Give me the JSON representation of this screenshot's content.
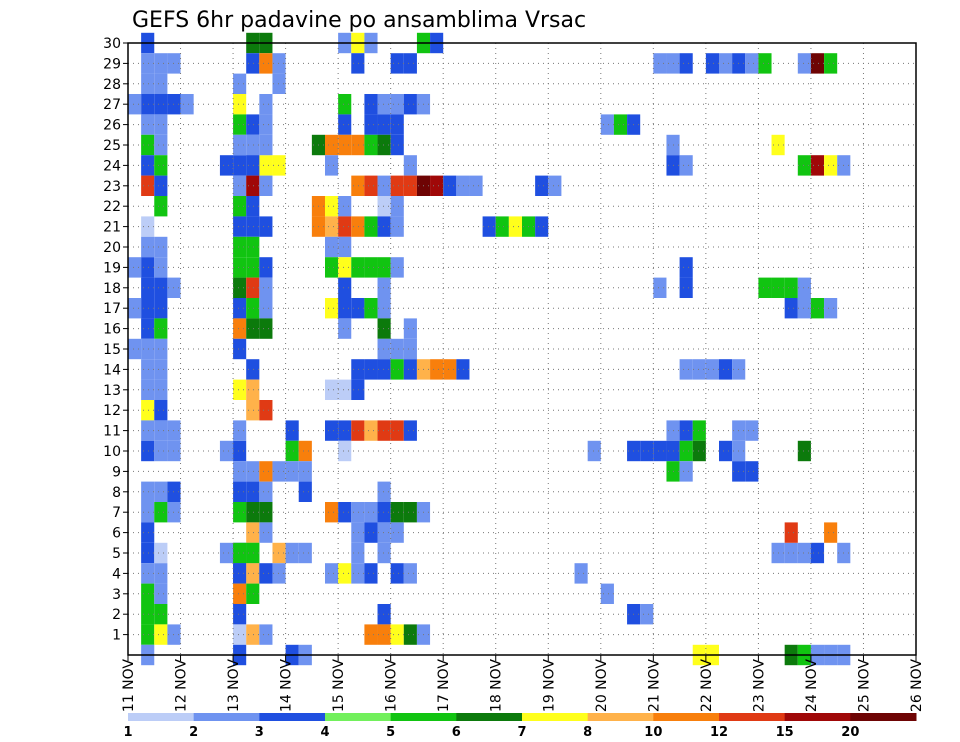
{
  "chart_data": {
    "type": "heatmap",
    "title": "GEFS 6hr padavine po ansamblima Vrsac",
    "xlabel": "",
    "ylabel": "",
    "x_tick_labels": [
      "11 NOV",
      "12 NOV",
      "13 NOV",
      "14 NOV",
      "15 NOV",
      "16 NOV",
      "17 NOV",
      "18 NOV",
      "19 NOV",
      "20 NOV",
      "21 NOV",
      "22 NOV",
      "23 NOV",
      "24 NOV",
      "25 NOV",
      "26 NOV"
    ],
    "y_tick_labels": [
      "1",
      "2",
      "3",
      "4",
      "5",
      "6",
      "7",
      "8",
      "9",
      "10",
      "11",
      "12",
      "13",
      "14",
      "15",
      "16",
      "17",
      "18",
      "19",
      "20",
      "21",
      "22",
      "23",
      "24",
      "25",
      "26",
      "27",
      "28",
      "29",
      "30"
    ],
    "x_range": [
      0,
      60
    ],
    "y_range": [
      0,
      30
    ],
    "grid": true,
    "colorbar": {
      "levels": [
        "1",
        "2",
        "3",
        "4",
        "5",
        "6",
        "7",
        "8",
        "10",
        "12",
        "15",
        "20"
      ],
      "colors": [
        "#bccdf7",
        "#6f93f0",
        "#1f4fe0",
        "#72f05c",
        "#11c411",
        "#0c7a0c",
        "#ffff1c",
        "#ffb24a",
        "#f87f0c",
        "#e03a14",
        "#a00808",
        "#6e0404"
      ]
    },
    "cell_value_units": "color index (0 = 1-2, 11 = >20)",
    "cells": [
      [
        1,
        30,
        2
      ],
      [
        1,
        29,
        1
      ],
      [
        1,
        28,
        1
      ],
      [
        1,
        27,
        2
      ],
      [
        1,
        26,
        1
      ],
      [
        1,
        25,
        4
      ],
      [
        1,
        24,
        2
      ],
      [
        1,
        23,
        9
      ],
      [
        1,
        21,
        0
      ],
      [
        1,
        20,
        1
      ],
      [
        1,
        19,
        2
      ],
      [
        1,
        18,
        2
      ],
      [
        1,
        17,
        2
      ],
      [
        1,
        16,
        2
      ],
      [
        1,
        15,
        1
      ],
      [
        1,
        14,
        1
      ],
      [
        1,
        13,
        1
      ],
      [
        1,
        12,
        6
      ],
      [
        1,
        11,
        1
      ],
      [
        1,
        10,
        2
      ],
      [
        1,
        8,
        1
      ],
      [
        1,
        7,
        1
      ],
      [
        1,
        6,
        2
      ],
      [
        1,
        5,
        2
      ],
      [
        1,
        4,
        1
      ],
      [
        1,
        3,
        4
      ],
      [
        1,
        2,
        4
      ],
      [
        1,
        1,
        4
      ],
      [
        1,
        0,
        1
      ],
      [
        2,
        29,
        1
      ],
      [
        2,
        28,
        1
      ],
      [
        2,
        27,
        2
      ],
      [
        2,
        26,
        1
      ],
      [
        2,
        25,
        1
      ],
      [
        2,
        24,
        4
      ],
      [
        2,
        23,
        2
      ],
      [
        2,
        22,
        4
      ],
      [
        2,
        20,
        1
      ],
      [
        2,
        19,
        1
      ],
      [
        2,
        18,
        2
      ],
      [
        2,
        17,
        2
      ],
      [
        2,
        16,
        4
      ],
      [
        2,
        15,
        1
      ],
      [
        2,
        14,
        1
      ],
      [
        2,
        13,
        1
      ],
      [
        2,
        12,
        2
      ],
      [
        2,
        11,
        1
      ],
      [
        2,
        10,
        1
      ],
      [
        2,
        8,
        1
      ],
      [
        2,
        7,
        4
      ],
      [
        2,
        5,
        0
      ],
      [
        2,
        4,
        1
      ],
      [
        2,
        3,
        1
      ],
      [
        2,
        2,
        4
      ],
      [
        2,
        1,
        6
      ],
      [
        0,
        27,
        1
      ],
      [
        0,
        19,
        1
      ],
      [
        0,
        17,
        1
      ],
      [
        0,
        15,
        1
      ],
      [
        3,
        29,
        1
      ],
      [
        3,
        27,
        2
      ],
      [
        3,
        18,
        1
      ],
      [
        3,
        11,
        1
      ],
      [
        3,
        10,
        1
      ],
      [
        3,
        8,
        2
      ],
      [
        3,
        7,
        1
      ],
      [
        3,
        1,
        1
      ],
      [
        4,
        27,
        1
      ],
      [
        8,
        24,
        2
      ],
      [
        9,
        24,
        1
      ],
      [
        10,
        24,
        6
      ],
      [
        11,
        24,
        6
      ],
      [
        12,
        0,
        2
      ],
      [
        13,
        0,
        1
      ],
      [
        7,
        24,
        2
      ],
      [
        8,
        22,
        0
      ],
      [
        7,
        10,
        1
      ],
      [
        8,
        10,
        2
      ],
      [
        7,
        5,
        1
      ],
      [
        8,
        5,
        2
      ],
      [
        9,
        5,
        4
      ],
      [
        8,
        4,
        2
      ],
      [
        9,
        4,
        1
      ],
      [
        8,
        28,
        1
      ],
      [
        8,
        27,
        6
      ],
      [
        8,
        26,
        4
      ],
      [
        8,
        25,
        1
      ],
      [
        8,
        23,
        1
      ],
      [
        8,
        22,
        4
      ],
      [
        8,
        21,
        2
      ],
      [
        8,
        20,
        4
      ],
      [
        8,
        19,
        4
      ],
      [
        8,
        18,
        5
      ],
      [
        8,
        17,
        2
      ],
      [
        8,
        16,
        8
      ],
      [
        8,
        15,
        2
      ],
      [
        8,
        13,
        6
      ],
      [
        8,
        11,
        1
      ],
      [
        8,
        9,
        1
      ],
      [
        8,
        8,
        2
      ],
      [
        8,
        7,
        4
      ],
      [
        8,
        5,
        4
      ],
      [
        8,
        4,
        2
      ],
      [
        8,
        3,
        8
      ],
      [
        8,
        2,
        2
      ],
      [
        8,
        1,
        0
      ],
      [
        8,
        0,
        2
      ],
      [
        9,
        30,
        5
      ],
      [
        9,
        29,
        2
      ],
      [
        9,
        26,
        2
      ],
      [
        9,
        25,
        1
      ],
      [
        9,
        24,
        2
      ],
      [
        9,
        23,
        10
      ],
      [
        9,
        22,
        2
      ],
      [
        9,
        21,
        2
      ],
      [
        9,
        20,
        4
      ],
      [
        9,
        19,
        4
      ],
      [
        9,
        18,
        9
      ],
      [
        9,
        17,
        4
      ],
      [
        9,
        16,
        5
      ],
      [
        9,
        14,
        2
      ],
      [
        9,
        13,
        7
      ],
      [
        9,
        12,
        7
      ],
      [
        9,
        9,
        1
      ],
      [
        9,
        8,
        2
      ],
      [
        9,
        7,
        5
      ],
      [
        9,
        6,
        7
      ],
      [
        9,
        5,
        4
      ],
      [
        9,
        4,
        7
      ],
      [
        9,
        3,
        4
      ],
      [
        9,
        1,
        7
      ],
      [
        10,
        30,
        5
      ],
      [
        10,
        29,
        8
      ],
      [
        10,
        27,
        1
      ],
      [
        10,
        26,
        1
      ],
      [
        10,
        25,
        1
      ],
      [
        10,
        23,
        1
      ],
      [
        10,
        21,
        2
      ],
      [
        10,
        19,
        2
      ],
      [
        10,
        18,
        1
      ],
      [
        10,
        17,
        1
      ],
      [
        10,
        16,
        5
      ],
      [
        10,
        12,
        9
      ],
      [
        10,
        9,
        8
      ],
      [
        10,
        8,
        1
      ],
      [
        10,
        7,
        5
      ],
      [
        10,
        6,
        1
      ],
      [
        10,
        4,
        2
      ],
      [
        10,
        1,
        1
      ],
      [
        11,
        29,
        1
      ],
      [
        11,
        28,
        1
      ],
      [
        11,
        9,
        1
      ],
      [
        11,
        5,
        7
      ],
      [
        11,
        4,
        1
      ],
      [
        12,
        11,
        2
      ],
      [
        12,
        10,
        4
      ],
      [
        12,
        9,
        1
      ],
      [
        12,
        5,
        1
      ],
      [
        13,
        10,
        8
      ],
      [
        13,
        9,
        1
      ],
      [
        13,
        5,
        1
      ],
      [
        13,
        8,
        2
      ],
      [
        14,
        25,
        5
      ],
      [
        14,
        22,
        8
      ],
      [
        14,
        21,
        8
      ],
      [
        15,
        25,
        8
      ],
      [
        15,
        24,
        1
      ],
      [
        15,
        22,
        6
      ],
      [
        15,
        21,
        7
      ],
      [
        15,
        20,
        1
      ],
      [
        15,
        19,
        4
      ],
      [
        15,
        17,
        6
      ],
      [
        15,
        13,
        0
      ],
      [
        15,
        11,
        2
      ],
      [
        15,
        7,
        8
      ],
      [
        15,
        4,
        1
      ],
      [
        16,
        30,
        1
      ],
      [
        16,
        27,
        4
      ],
      [
        16,
        26,
        2
      ],
      [
        16,
        25,
        8
      ],
      [
        16,
        22,
        1
      ],
      [
        16,
        21,
        9
      ],
      [
        16,
        20,
        1
      ],
      [
        16,
        19,
        6
      ],
      [
        16,
        18,
        2
      ],
      [
        16,
        17,
        2
      ],
      [
        16,
        16,
        1
      ],
      [
        16,
        13,
        0
      ],
      [
        16,
        11,
        2
      ],
      [
        16,
        10,
        0
      ],
      [
        16,
        7,
        2
      ],
      [
        16,
        4,
        6
      ],
      [
        17,
        30,
        6
      ],
      [
        17,
        29,
        2
      ],
      [
        17,
        25,
        8
      ],
      [
        17,
        23,
        8
      ],
      [
        17,
        21,
        8
      ],
      [
        17,
        19,
        4
      ],
      [
        17,
        17,
        2
      ],
      [
        17,
        14,
        2
      ],
      [
        17,
        13,
        2
      ],
      [
        17,
        11,
        9
      ],
      [
        17,
        7,
        1
      ],
      [
        17,
        6,
        1
      ],
      [
        17,
        5,
        1
      ],
      [
        17,
        4,
        1
      ],
      [
        18,
        30,
        1
      ],
      [
        18,
        27,
        2
      ],
      [
        18,
        26,
        2
      ],
      [
        18,
        25,
        4
      ],
      [
        18,
        23,
        9
      ],
      [
        18,
        21,
        4
      ],
      [
        18,
        19,
        4
      ],
      [
        18,
        17,
        4
      ],
      [
        18,
        14,
        2
      ],
      [
        18,
        11,
        7
      ],
      [
        18,
        7,
        1
      ],
      [
        18,
        6,
        2
      ],
      [
        18,
        4,
        2
      ],
      [
        18,
        1,
        8
      ],
      [
        19,
        27,
        1
      ],
      [
        19,
        26,
        2
      ],
      [
        19,
        25,
        5
      ],
      [
        19,
        23,
        1
      ],
      [
        19,
        22,
        0
      ],
      [
        19,
        21,
        2
      ],
      [
        19,
        19,
        4
      ],
      [
        19,
        18,
        1
      ],
      [
        19,
        17,
        1
      ],
      [
        19,
        16,
        5
      ],
      [
        19,
        15,
        1
      ],
      [
        19,
        14,
        2
      ],
      [
        19,
        11,
        9
      ],
      [
        19,
        8,
        1
      ],
      [
        19,
        7,
        2
      ],
      [
        19,
        6,
        1
      ],
      [
        19,
        5,
        1
      ],
      [
        19,
        2,
        2
      ],
      [
        19,
        1,
        8
      ],
      [
        20,
        29,
        2
      ],
      [
        20,
        27,
        1
      ],
      [
        20,
        26,
        2
      ],
      [
        20,
        25,
        2
      ],
      [
        20,
        23,
        9
      ],
      [
        20,
        22,
        1
      ],
      [
        20,
        21,
        1
      ],
      [
        20,
        19,
        1
      ],
      [
        20,
        15,
        1
      ],
      [
        20,
        14,
        4
      ],
      [
        20,
        11,
        9
      ],
      [
        20,
        7,
        5
      ],
      [
        20,
        6,
        1
      ],
      [
        20,
        4,
        2
      ],
      [
        20,
        1,
        6
      ],
      [
        21,
        29,
        2
      ],
      [
        21,
        27,
        2
      ],
      [
        21,
        24,
        1
      ],
      [
        21,
        23,
        9
      ],
      [
        21,
        16,
        1
      ],
      [
        21,
        15,
        1
      ],
      [
        21,
        14,
        2
      ],
      [
        21,
        11,
        2
      ],
      [
        21,
        7,
        5
      ],
      [
        21,
        4,
        1
      ],
      [
        21,
        1,
        5
      ],
      [
        22,
        30,
        4
      ],
      [
        22,
        27,
        1
      ],
      [
        22,
        23,
        11
      ],
      [
        22,
        14,
        7
      ],
      [
        22,
        7,
        1
      ],
      [
        22,
        1,
        1
      ],
      [
        23,
        30,
        2
      ],
      [
        23,
        23,
        10
      ],
      [
        23,
        14,
        8
      ],
      [
        24,
        23,
        2
      ],
      [
        24,
        14,
        8
      ],
      [
        25,
        23,
        1
      ],
      [
        25,
        14,
        2
      ],
      [
        26,
        23,
        1
      ],
      [
        27,
        21,
        2
      ],
      [
        28,
        21,
        4
      ],
      [
        29,
        21,
        6
      ],
      [
        30,
        21,
        4
      ],
      [
        31,
        23,
        2
      ],
      [
        31,
        21,
        2
      ],
      [
        32,
        23,
        1
      ],
      [
        34,
        4,
        1
      ],
      [
        35,
        10,
        1
      ],
      [
        36,
        26,
        1
      ],
      [
        36,
        3,
        1
      ],
      [
        37,
        26,
        4
      ],
      [
        38,
        26,
        2
      ],
      [
        38,
        2,
        2
      ],
      [
        39,
        2,
        1
      ],
      [
        38,
        10,
        2
      ],
      [
        39,
        10,
        2
      ],
      [
        40,
        29,
        1
      ],
      [
        40,
        18,
        1
      ],
      [
        40,
        10,
        2
      ],
      [
        41,
        29,
        1
      ],
      [
        41,
        25,
        1
      ],
      [
        41,
        24,
        2
      ],
      [
        41,
        11,
        1
      ],
      [
        41,
        10,
        2
      ],
      [
        41,
        9,
        4
      ],
      [
        42,
        29,
        2
      ],
      [
        42,
        24,
        1
      ],
      [
        42,
        19,
        2
      ],
      [
        42,
        18,
        2
      ],
      [
        42,
        14,
        1
      ],
      [
        42,
        11,
        2
      ],
      [
        42,
        10,
        4
      ],
      [
        42,
        9,
        1
      ],
      [
        43,
        14,
        1
      ],
      [
        43,
        11,
        4
      ],
      [
        43,
        10,
        5
      ],
      [
        43,
        0,
        6
      ],
      [
        44,
        29,
        2
      ],
      [
        44,
        14,
        1
      ],
      [
        44,
        0,
        6
      ],
      [
        45,
        29,
        1
      ],
      [
        45,
        14,
        2
      ],
      [
        45,
        10,
        2
      ],
      [
        46,
        29,
        2
      ],
      [
        46,
        14,
        1
      ],
      [
        46,
        11,
        1
      ],
      [
        46,
        10,
        1
      ],
      [
        46,
        9,
        2
      ],
      [
        47,
        29,
        1
      ],
      [
        47,
        11,
        1
      ],
      [
        47,
        9,
        2
      ],
      [
        48,
        29,
        4
      ],
      [
        48,
        18,
        4
      ],
      [
        49,
        25,
        6
      ],
      [
        49,
        18,
        4
      ],
      [
        49,
        5,
        1
      ],
      [
        50,
        18,
        4
      ],
      [
        50,
        17,
        2
      ],
      [
        50,
        5,
        1
      ],
      [
        50,
        6,
        9
      ],
      [
        50,
        0,
        5
      ],
      [
        51,
        29,
        1
      ],
      [
        51,
        24,
        4
      ],
      [
        51,
        18,
        1
      ],
      [
        51,
        17,
        1
      ],
      [
        51,
        5,
        1
      ],
      [
        51,
        10,
        5
      ],
      [
        51,
        0,
        4
      ],
      [
        52,
        29,
        11
      ],
      [
        52,
        24,
        10
      ],
      [
        52,
        17,
        4
      ],
      [
        52,
        5,
        2
      ],
      [
        52,
        0,
        1
      ],
      [
        53,
        29,
        4
      ],
      [
        53,
        24,
        6
      ],
      [
        53,
        17,
        1
      ],
      [
        53,
        6,
        8
      ],
      [
        53,
        0,
        1
      ],
      [
        54,
        24,
        1
      ],
      [
        54,
        5,
        1
      ],
      [
        54,
        0,
        1
      ]
    ]
  }
}
